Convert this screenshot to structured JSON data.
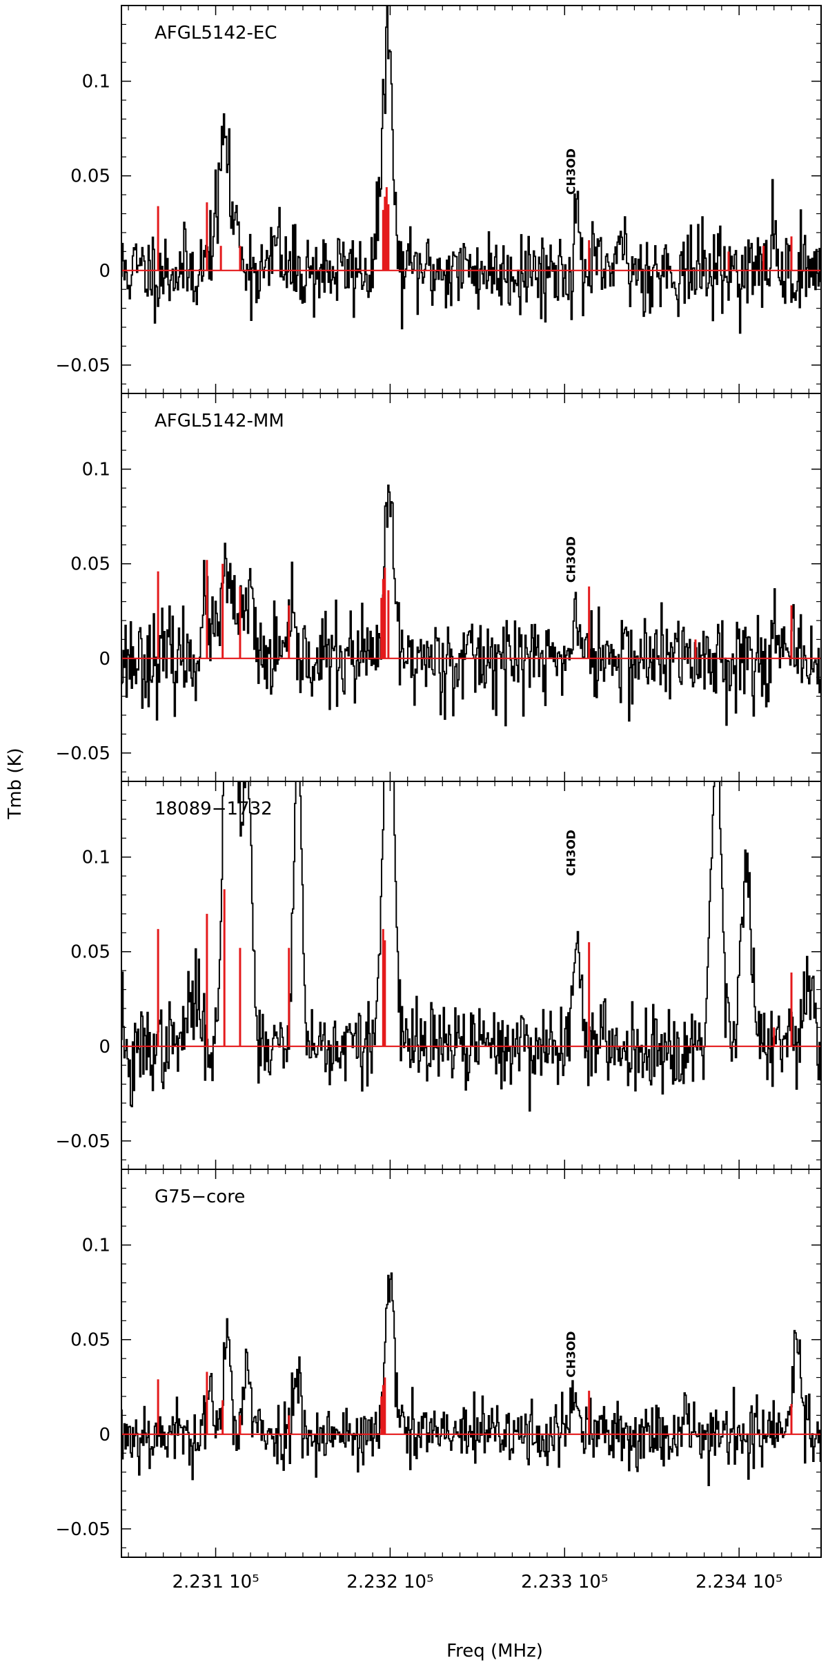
{
  "figure": {
    "xlabel": "Freq (MHz)",
    "ylabel": "Tmb (K)"
  },
  "chart_data": [
    {
      "type": "line",
      "title": "AFGL5142-EC",
      "xlim": [
        223046,
        223447
      ],
      "ylim": [
        -0.065,
        0.14
      ],
      "x_ticks": [
        {
          "value": 223100,
          "label": "2.231 10⁵"
        },
        {
          "value": 223200,
          "label": "2.232 10⁵"
        },
        {
          "value": 223300,
          "label": "2.233 10⁵"
        },
        {
          "value": 223400,
          "label": "2.234 10⁵"
        }
      ],
      "y_ticks": [
        {
          "value": -0.05,
          "label": "−0.05"
        },
        {
          "value": 0,
          "label": "0"
        },
        {
          "value": 0.05,
          "label": "0.05"
        },
        {
          "value": 0.1,
          "label": "0.1"
        }
      ],
      "annotations": [
        {
          "text": "CH3OD",
          "x": 223306,
          "y": 0.04
        }
      ],
      "series": [
        {
          "color": "#000000",
          "style": "histogram",
          "noise": 0.011,
          "seed": 11,
          "features": [
            [
              223100,
              0.023,
              3
            ],
            [
              223105,
              0.06,
              2
            ],
            [
              223110,
              0.025,
              4
            ],
            [
              223135,
              0.02,
              1.5
            ],
            [
              223195,
              0.045,
              2
            ],
            [
              223198,
              0.06,
              1.5
            ],
            [
              223200,
              0.085,
              2
            ],
            [
              223307,
              0.028,
              1.5
            ],
            [
              223334,
              0.015,
              1.5
            ],
            [
              223420,
              0.02,
              1.5
            ]
          ]
        },
        {
          "color": "#e41a1c",
          "style": "sticks",
          "sticks": [
            [
              223067,
              0.034
            ],
            [
              223095,
              0.036
            ],
            [
              223103,
              0.013
            ],
            [
              223114,
              0.013
            ],
            [
              223196,
              0.032
            ],
            [
              223197,
              0.039
            ],
            [
              223198,
              0.044
            ],
            [
              223199,
              0.035
            ],
            [
              223314,
              0.016
            ],
            [
              223394,
              0.01
            ],
            [
              223414,
              0.013
            ],
            [
              223430,
              0.018
            ]
          ]
        }
      ]
    },
    {
      "type": "line",
      "title": "AFGL5142-MM",
      "xlim": [
        223046,
        223447
      ],
      "ylim": [
        -0.065,
        0.14
      ],
      "x_ticks": [
        {
          "value": 223100,
          "label": "2.231 10⁵"
        },
        {
          "value": 223200,
          "label": "2.232 10⁵"
        },
        {
          "value": 223300,
          "label": "2.233 10⁵"
        },
        {
          "value": 223400,
          "label": "2.234 10⁵"
        }
      ],
      "y_ticks": [
        {
          "value": -0.05,
          "label": "−0.05"
        },
        {
          "value": 0,
          "label": "0"
        },
        {
          "value": 0.05,
          "label": "0.05"
        },
        {
          "value": 0.1,
          "label": "0.1"
        }
      ],
      "annotations": [
        {
          "text": "CH3OD",
          "x": 223306,
          "y": 0.04
        }
      ],
      "series": [
        {
          "color": "#000000",
          "style": "histogram",
          "noise": 0.012,
          "seed": 23,
          "features": [
            [
              223095,
              0.025,
              3
            ],
            [
              223105,
              0.045,
              2
            ],
            [
              223112,
              0.03,
              3
            ],
            [
              223120,
              0.04,
              1.5
            ],
            [
              223143,
              0.015,
              2
            ],
            [
              223198,
              0.048,
              2
            ],
            [
              223201,
              0.06,
              2
            ],
            [
              223307,
              0.032,
              1.5
            ],
            [
              223420,
              0.015,
              2
            ]
          ]
        },
        {
          "color": "#e41a1c",
          "style": "sticks",
          "sticks": [
            [
              223067,
              0.046
            ],
            [
              223095,
              0.052
            ],
            [
              223104,
              0.05
            ],
            [
              223114,
              0.038
            ],
            [
              223142,
              0.028
            ],
            [
              223195,
              0.032
            ],
            [
              223196,
              0.042
            ],
            [
              223197,
              0.048
            ],
            [
              223199,
              0.036
            ],
            [
              223314,
              0.038
            ],
            [
              223375,
              0.01
            ],
            [
              223430,
              0.028
            ]
          ]
        }
      ]
    },
    {
      "type": "line",
      "title": "18089−1732",
      "xlim": [
        223046,
        223447
      ],
      "ylim": [
        -0.065,
        0.14
      ],
      "x_ticks": [
        {
          "value": 223100,
          "label": "2.231 10⁵"
        },
        {
          "value": 223200,
          "label": "2.232 10⁵"
        },
        {
          "value": 223300,
          "label": "2.233 10⁵"
        },
        {
          "value": 223400,
          "label": "2.234 10⁵"
        }
      ],
      "y_ticks": [
        {
          "value": -0.05,
          "label": "−0.05"
        },
        {
          "value": 0,
          "label": "0"
        },
        {
          "value": 0.05,
          "label": "0.05"
        },
        {
          "value": 0.1,
          "label": "0.1"
        }
      ],
      "annotations": [
        {
          "text": "CH3OD",
          "x": 223306,
          "y": 0.09
        }
      ],
      "series": [
        {
          "color": "#000000",
          "style": "histogram",
          "noise": 0.011,
          "seed": 37,
          "features": [
            [
              223047,
              0.03,
              1.5
            ],
            [
              223050,
              -0.02,
              3
            ],
            [
              223088,
              0.025,
              4
            ],
            [
              223106,
              0.2,
              2
            ],
            [
              223111,
              0.18,
              2.5
            ],
            [
              223118,
              0.16,
              2.5
            ],
            [
              223147,
              0.19,
              2
            ],
            [
              223199,
              0.2,
              3
            ],
            [
              223307,
              0.07,
              2
            ],
            [
              223387,
              0.16,
              3
            ],
            [
              223404,
              0.095,
              3
            ],
            [
              223440,
              0.04,
              2
            ]
          ]
        },
        {
          "color": "#e41a1c",
          "style": "sticks",
          "sticks": [
            [
              223067,
              0.062
            ],
            [
              223095,
              0.07
            ],
            [
              223105,
              0.083
            ],
            [
              223114,
              0.052
            ],
            [
              223142,
              0.052
            ],
            [
              223196,
              0.062
            ],
            [
              223197,
              0.056
            ],
            [
              223314,
              0.055
            ],
            [
              223420,
              0.01
            ],
            [
              223430,
              0.039
            ]
          ]
        }
      ]
    },
    {
      "type": "line",
      "title": "G75−core",
      "xlim": [
        223046,
        223447
      ],
      "ylim": [
        -0.065,
        0.14
      ],
      "x_ticks": [
        {
          "value": 223100,
          "label": "2.231 10⁵"
        },
        {
          "value": 223200,
          "label": "2.232 10⁵"
        },
        {
          "value": 223300,
          "label": "2.233 10⁵"
        },
        {
          "value": 223400,
          "label": "2.234 10⁵"
        }
      ],
      "y_ticks": [
        {
          "value": -0.05,
          "label": "−0.05"
        },
        {
          "value": 0,
          "label": "0"
        },
        {
          "value": 0.05,
          "label": "0.05"
        },
        {
          "value": 0.1,
          "label": "0.1"
        }
      ],
      "annotations": [
        {
          "text": "CH3OD",
          "x": 223306,
          "y": 0.03
        }
      ],
      "series": [
        {
          "color": "#000000",
          "style": "histogram",
          "noise": 0.009,
          "seed": 53,
          "features": [
            [
              223096,
              0.02,
              2
            ],
            [
              223107,
              0.055,
              2
            ],
            [
              223118,
              0.035,
              2
            ],
            [
              223147,
              0.035,
              2
            ],
            [
              223200,
              0.08,
              2.5
            ],
            [
              223306,
              0.022,
              2
            ],
            [
              223370,
              0.015,
              2
            ],
            [
              223433,
              0.05,
              2.5
            ]
          ]
        },
        {
          "color": "#e41a1c",
          "style": "sticks",
          "sticks": [
            [
              223067,
              0.029
            ],
            [
              223095,
              0.033
            ],
            [
              223104,
              0.018
            ],
            [
              223114,
              0.01
            ],
            [
              223142,
              0.01
            ],
            [
              223195,
              0.02
            ],
            [
              223196,
              0.026
            ],
            [
              223197,
              0.03
            ],
            [
              223314,
              0.023
            ],
            [
              223430,
              0.016
            ]
          ]
        }
      ]
    }
  ]
}
